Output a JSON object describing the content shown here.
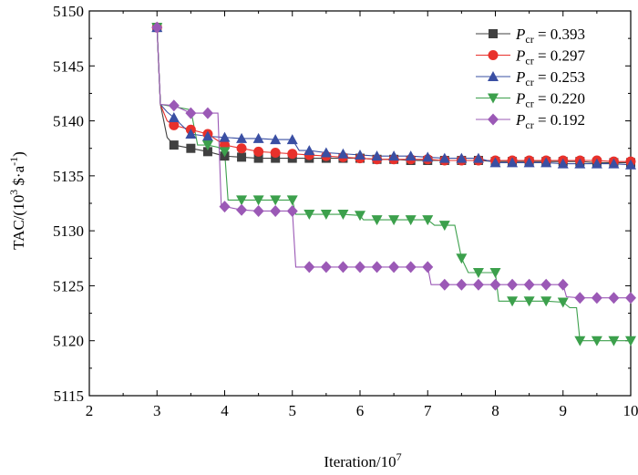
{
  "chart_data": {
    "type": "line",
    "xlabel": "Iteration/10",
    "xlabel_sup": "7",
    "ylabel_prefix": "TAC/(10",
    "ylabel_sup1": "3",
    "ylabel_mid": " $·a",
    "ylabel_sup2": "-1",
    "ylabel_suffix": ")",
    "xlim": [
      2,
      10
    ],
    "ylim": [
      5115,
      5150
    ],
    "xticks": [
      2,
      3,
      4,
      5,
      6,
      7,
      8,
      9,
      10
    ],
    "yticks": [
      5115,
      5120,
      5125,
      5130,
      5135,
      5140,
      5145,
      5150
    ],
    "legend_position": "top-right",
    "series": [
      {
        "name": "0.393",
        "legend_var": "P",
        "legend_sub": "cr",
        "legend_eq": " = ",
        "color": "#404040",
        "marker": "square",
        "points": [
          [
            3.0,
            5148.5
          ],
          [
            3.05,
            5141.5
          ],
          [
            3.15,
            5138.5
          ],
          [
            3.25,
            5137.8
          ],
          [
            3.5,
            5137.5
          ],
          [
            3.75,
            5137.2
          ],
          [
            4.0,
            5136.8
          ],
          [
            4.25,
            5136.7
          ],
          [
            4.5,
            5136.6
          ],
          [
            4.75,
            5136.6
          ],
          [
            5.0,
            5136.6
          ],
          [
            5.25,
            5136.6
          ],
          [
            5.5,
            5136.6
          ],
          [
            5.75,
            5136.6
          ],
          [
            6.0,
            5136.6
          ],
          [
            6.25,
            5136.5
          ],
          [
            6.5,
            5136.5
          ],
          [
            6.75,
            5136.4
          ],
          [
            7.0,
            5136.4
          ],
          [
            7.25,
            5136.4
          ],
          [
            7.5,
            5136.4
          ],
          [
            7.75,
            5136.4
          ],
          [
            8.0,
            5136.3
          ],
          [
            8.25,
            5136.3
          ],
          [
            8.5,
            5136.3
          ],
          [
            8.75,
            5136.3
          ],
          [
            9.0,
            5136.3
          ],
          [
            9.25,
            5136.3
          ],
          [
            9.5,
            5136.2
          ],
          [
            9.75,
            5136.2
          ],
          [
            10.0,
            5136.2
          ]
        ],
        "markers_at": [
          3.0,
          3.25,
          3.5,
          3.75,
          4.0,
          4.25,
          4.5,
          4.75,
          5.0,
          5.25,
          5.5,
          5.75,
          6.0,
          6.25,
          6.5,
          6.75,
          7.0,
          7.25,
          7.5,
          7.75,
          8.0,
          8.25,
          8.5,
          8.75,
          9.0,
          9.25,
          9.5,
          9.75,
          10.0
        ]
      },
      {
        "name": "0.297",
        "legend_var": "P",
        "legend_sub": "cr",
        "legend_eq": " = ",
        "color": "#e8312b",
        "marker": "circle",
        "points": [
          [
            3.0,
            5148.5
          ],
          [
            3.05,
            5141.5
          ],
          [
            3.15,
            5140.0
          ],
          [
            3.25,
            5139.6
          ],
          [
            3.5,
            5139.2
          ],
          [
            3.75,
            5138.8
          ],
          [
            4.0,
            5137.8
          ],
          [
            4.25,
            5137.5
          ],
          [
            4.5,
            5137.2
          ],
          [
            4.75,
            5137.1
          ],
          [
            5.0,
            5137.0
          ],
          [
            5.25,
            5136.9
          ],
          [
            5.5,
            5136.8
          ],
          [
            5.75,
            5136.7
          ],
          [
            6.0,
            5136.6
          ],
          [
            6.25,
            5136.5
          ],
          [
            6.5,
            5136.5
          ],
          [
            6.75,
            5136.5
          ],
          [
            7.0,
            5136.5
          ],
          [
            7.25,
            5136.4
          ],
          [
            7.5,
            5136.4
          ],
          [
            7.75,
            5136.4
          ],
          [
            8.0,
            5136.4
          ],
          [
            8.25,
            5136.4
          ],
          [
            8.5,
            5136.4
          ],
          [
            8.75,
            5136.4
          ],
          [
            9.0,
            5136.4
          ],
          [
            9.25,
            5136.4
          ],
          [
            9.5,
            5136.4
          ],
          [
            9.75,
            5136.3
          ],
          [
            10.0,
            5136.3
          ]
        ],
        "markers_at": [
          3.0,
          3.25,
          3.5,
          3.75,
          4.0,
          4.25,
          4.5,
          4.75,
          5.0,
          5.25,
          5.5,
          5.75,
          6.0,
          6.25,
          6.5,
          6.75,
          7.0,
          7.25,
          7.5,
          7.75,
          8.0,
          8.25,
          8.5,
          8.75,
          9.0,
          9.25,
          9.5,
          9.75,
          10.0
        ]
      },
      {
        "name": "0.253",
        "legend_var": "P",
        "legend_sub": "cr",
        "legend_eq": " = ",
        "color": "#3a4fa3",
        "marker": "triangle-up",
        "points": [
          [
            3.0,
            5148.5
          ],
          [
            3.05,
            5141.5
          ],
          [
            3.15,
            5140.8
          ],
          [
            3.25,
            5140.3
          ],
          [
            3.5,
            5138.8
          ],
          [
            3.75,
            5138.6
          ],
          [
            4.0,
            5138.5
          ],
          [
            4.25,
            5138.4
          ],
          [
            4.5,
            5138.4
          ],
          [
            4.75,
            5138.3
          ],
          [
            5.0,
            5138.3
          ],
          [
            5.1,
            5137.3
          ],
          [
            5.25,
            5137.3
          ],
          [
            5.5,
            5137.1
          ],
          [
            5.75,
            5137.0
          ],
          [
            6.0,
            5136.9
          ],
          [
            6.25,
            5136.8
          ],
          [
            6.5,
            5136.8
          ],
          [
            6.75,
            5136.8
          ],
          [
            7.0,
            5136.7
          ],
          [
            7.25,
            5136.6
          ],
          [
            7.5,
            5136.6
          ],
          [
            7.75,
            5136.6
          ],
          [
            8.0,
            5136.2
          ],
          [
            8.25,
            5136.2
          ],
          [
            8.5,
            5136.2
          ],
          [
            8.75,
            5136.2
          ],
          [
            9.0,
            5136.1
          ],
          [
            9.25,
            5136.1
          ],
          [
            9.5,
            5136.1
          ],
          [
            9.75,
            5136.1
          ],
          [
            10.0,
            5136.0
          ]
        ],
        "markers_at": [
          3.0,
          3.25,
          3.5,
          3.75,
          4.0,
          4.25,
          4.5,
          4.75,
          5.0,
          5.25,
          5.5,
          5.75,
          6.0,
          6.25,
          6.5,
          6.75,
          7.0,
          7.25,
          7.5,
          7.75,
          8.0,
          8.25,
          8.5,
          8.75,
          9.0,
          9.25,
          9.5,
          9.75,
          10.0
        ]
      },
      {
        "name": "0.220",
        "legend_var": "P",
        "legend_sub": "cr",
        "legend_eq": " = ",
        "color": "#3ca04c",
        "marker": "triangle-down",
        "points": [
          [
            3.0,
            5148.5
          ],
          [
            3.05,
            5141.5
          ],
          [
            3.25,
            5141.3
          ],
          [
            3.5,
            5141.0
          ],
          [
            3.6,
            5137.8
          ],
          [
            3.75,
            5137.8
          ],
          [
            3.9,
            5137.6
          ],
          [
            4.0,
            5137.2
          ],
          [
            4.05,
            5132.8
          ],
          [
            4.25,
            5132.8
          ],
          [
            4.5,
            5132.8
          ],
          [
            4.75,
            5132.8
          ],
          [
            5.0,
            5132.8
          ],
          [
            5.05,
            5131.5
          ],
          [
            5.25,
            5131.5
          ],
          [
            5.5,
            5131.5
          ],
          [
            5.75,
            5131.5
          ],
          [
            6.0,
            5131.4
          ],
          [
            6.05,
            5131.0
          ],
          [
            6.25,
            5131.0
          ],
          [
            6.5,
            5131.0
          ],
          [
            6.75,
            5131.0
          ],
          [
            7.0,
            5131.0
          ],
          [
            7.1,
            5130.5
          ],
          [
            7.25,
            5130.5
          ],
          [
            7.4,
            5130.5
          ],
          [
            7.5,
            5127.5
          ],
          [
            7.6,
            5126.2
          ],
          [
            7.75,
            5126.2
          ],
          [
            8.0,
            5126.2
          ],
          [
            8.05,
            5123.6
          ],
          [
            8.25,
            5123.6
          ],
          [
            8.5,
            5123.6
          ],
          [
            8.75,
            5123.6
          ],
          [
            9.0,
            5123.5
          ],
          [
            9.1,
            5123.0
          ],
          [
            9.2,
            5123.0
          ],
          [
            9.25,
            5120.0
          ],
          [
            9.5,
            5120.0
          ],
          [
            9.75,
            5120.0
          ],
          [
            10.0,
            5120.0
          ]
        ],
        "markers_at": [
          3.0,
          3.75,
          4.0,
          4.25,
          4.5,
          4.75,
          5.0,
          5.25,
          5.5,
          5.75,
          6.0,
          6.25,
          6.5,
          6.75,
          7.0,
          7.25,
          7.5,
          7.75,
          8.0,
          8.25,
          8.5,
          8.75,
          9.0,
          9.25,
          9.5,
          9.75,
          10.0
        ]
      },
      {
        "name": "0.192",
        "legend_var": "P",
        "legend_sub": "cr",
        "legend_eq": " = ",
        "color": "#9b59b6",
        "marker": "diamond",
        "points": [
          [
            3.0,
            5148.5
          ],
          [
            3.05,
            5141.5
          ],
          [
            3.25,
            5141.4
          ],
          [
            3.5,
            5140.7
          ],
          [
            3.75,
            5140.7
          ],
          [
            3.9,
            5140.7
          ],
          [
            3.95,
            5132.2
          ],
          [
            4.0,
            5132.2
          ],
          [
            4.25,
            5131.9
          ],
          [
            4.5,
            5131.8
          ],
          [
            4.75,
            5131.8
          ],
          [
            5.0,
            5131.8
          ],
          [
            5.05,
            5126.7
          ],
          [
            5.25,
            5126.7
          ],
          [
            5.5,
            5126.7
          ],
          [
            5.75,
            5126.7
          ],
          [
            6.0,
            5126.7
          ],
          [
            6.25,
            5126.7
          ],
          [
            6.5,
            5126.7
          ],
          [
            6.75,
            5126.7
          ],
          [
            7.0,
            5126.7
          ],
          [
            7.05,
            5125.1
          ],
          [
            7.25,
            5125.1
          ],
          [
            7.5,
            5125.1
          ],
          [
            7.75,
            5125.1
          ],
          [
            8.0,
            5125.1
          ],
          [
            8.25,
            5125.1
          ],
          [
            8.5,
            5125.1
          ],
          [
            8.75,
            5125.1
          ],
          [
            9.0,
            5125.1
          ],
          [
            9.05,
            5124.0
          ],
          [
            9.25,
            5123.9
          ],
          [
            9.5,
            5123.9
          ],
          [
            9.75,
            5123.9
          ],
          [
            10.0,
            5123.9
          ]
        ],
        "markers_at": [
          3.0,
          3.25,
          3.5,
          3.75,
          4.0,
          4.25,
          4.5,
          4.75,
          5.0,
          5.25,
          5.5,
          5.75,
          6.0,
          6.25,
          6.5,
          6.75,
          7.0,
          7.25,
          7.5,
          7.75,
          8.0,
          8.25,
          8.5,
          8.75,
          9.0,
          9.25,
          9.5,
          9.75,
          10.0
        ]
      }
    ]
  }
}
